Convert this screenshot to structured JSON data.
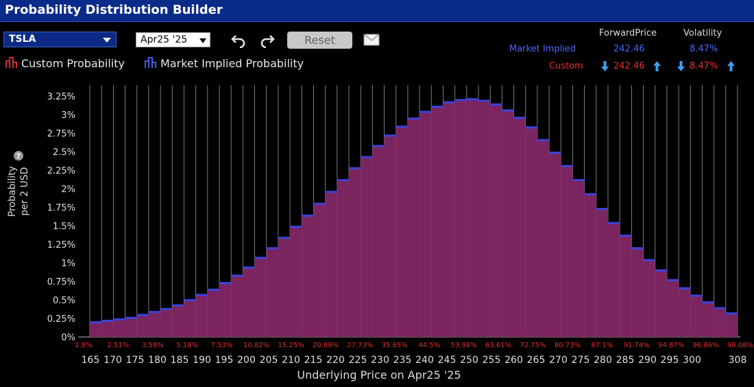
{
  "window": {
    "title": "Probability Distribution Builder"
  },
  "toolbar": {
    "symbol": "TSLA",
    "expiry": "Apr25 '25",
    "reset_label": "Reset"
  },
  "legend": {
    "custom": "Custom Probability",
    "market": "Market Implied Probability"
  },
  "stats": {
    "col_forward": "ForwardPrice",
    "col_volatility": "Volatility",
    "row_market": "Market Implied",
    "row_custom": "Custom",
    "market_forward": "242.46",
    "market_vol": "8.47%",
    "custom_forward": "242.46",
    "custom_vol": "8.47%"
  },
  "colors": {
    "title_bar": "#0a2a8a",
    "bar_fill": "#7b2560",
    "bar_top": "#3a44d8",
    "market_blue": "#4a66ff",
    "custom_red": "#e83030",
    "arrow_blue": "#3aa0f0"
  },
  "chart_data": {
    "type": "bar",
    "ylabel_line1": "Probability",
    "ylabel_line2": "per 2 USD",
    "xlabel": "Underlying Price on Apr25 '25",
    "ylim": [
      0,
      3.25
    ],
    "y_ticks": [
      "0%",
      "0.25%",
      "0.5%",
      "0.75%",
      "1%",
      "1.25%",
      "1.5%",
      "1.75%",
      "2%",
      "2.25%",
      "2.5%",
      "2.75%",
      "3%",
      "3.25%"
    ],
    "x_ticks": [
      "165",
      "170",
      "175",
      "180",
      "185",
      "190",
      "195",
      "200",
      "205",
      "210",
      "215",
      "220",
      "225",
      "230",
      "235",
      "240",
      "245",
      "250",
      "255",
      "260",
      "265",
      "270",
      "275",
      "280",
      "285",
      "290",
      "295",
      "300",
      "308"
    ],
    "cumulative_labels": [
      "1.8%",
      "2.51%",
      "3.58%",
      "5.18%",
      "7.53%",
      "10.82%",
      "15.25%",
      "20.89%",
      "27.73%",
      "35.65%",
      "44.5%",
      "53.98%",
      "63.61%",
      "72.75%",
      "80.73%",
      "87.1%",
      "91.74%",
      "94.87%",
      "96.86%",
      "98.08%"
    ],
    "x_start": 164,
    "bin_width": 2,
    "values": [
      0.21,
      0.23,
      0.25,
      0.27,
      0.31,
      0.35,
      0.39,
      0.44,
      0.51,
      0.58,
      0.65,
      0.74,
      0.84,
      0.95,
      1.08,
      1.21,
      1.35,
      1.5,
      1.65,
      1.81,
      1.97,
      2.13,
      2.29,
      2.44,
      2.59,
      2.73,
      2.85,
      2.96,
      3.05,
      3.12,
      3.18,
      3.21,
      3.22,
      3.2,
      3.15,
      3.07,
      2.97,
      2.84,
      2.67,
      2.5,
      2.32,
      2.13,
      1.94,
      1.74,
      1.55,
      1.38,
      1.21,
      1.05,
      0.91,
      0.78,
      0.67,
      0.57,
      0.48,
      0.4,
      0.33
    ],
    "grid": true
  }
}
